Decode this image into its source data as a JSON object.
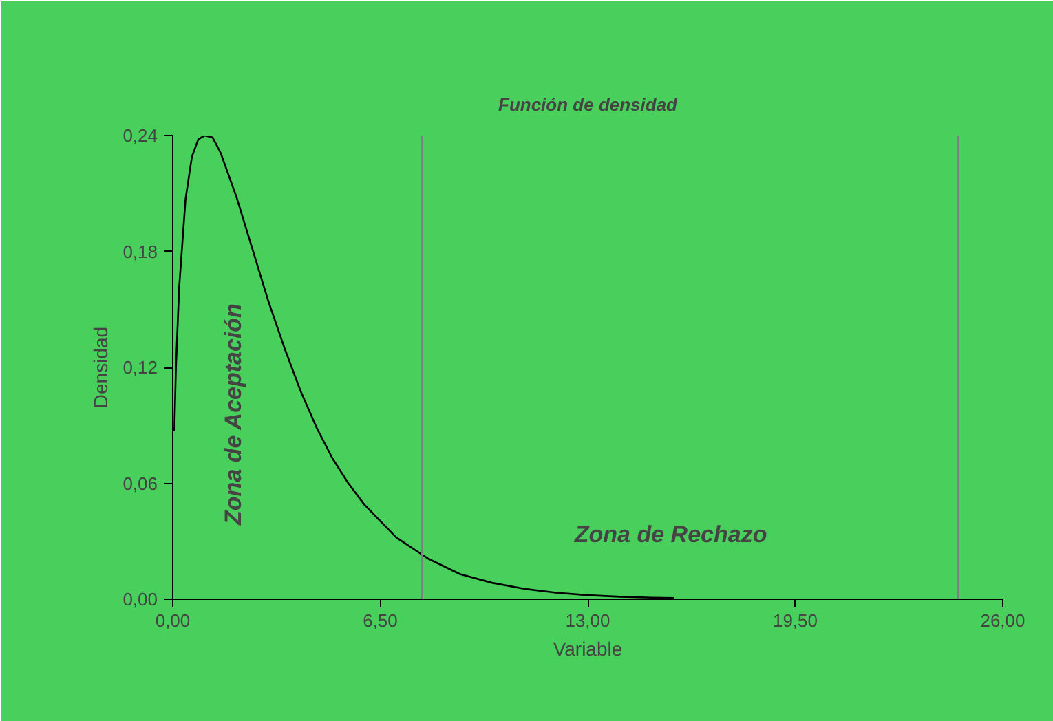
{
  "chart_data": {
    "type": "line",
    "title": "Función de densidad",
    "xlabel": "Variable",
    "ylabel": "Densidad",
    "x": [
      0.05,
      0.1,
      0.2,
      0.4,
      0.6,
      0.8,
      1,
      1.25,
      1.5,
      2,
      2.5,
      3,
      3.5,
      4,
      4.5,
      5,
      5.5,
      6,
      7,
      8,
      9,
      10,
      11,
      12,
      13,
      14,
      15,
      15.7
    ],
    "series": [
      {
        "color": "#000000",
        "values": [
          0.087,
          0.12,
          0.161,
          0.207,
          0.229,
          0.238,
          0.24,
          0.239,
          0.231,
          0.208,
          0.181,
          0.154,
          0.13,
          0.108,
          0.089,
          0.073,
          0.06,
          0.049,
          0.032,
          0.021,
          0.013,
          0.0085,
          0.0054,
          0.0034,
          0.0021,
          0.0013,
          0.0008,
          0.0006
        ]
      }
    ],
    "xlim": [
      0,
      26
    ],
    "ylim": [
      0,
      0.24
    ],
    "xticks": [
      {
        "value": 0,
        "label": "0,00"
      },
      {
        "value": 6.5,
        "label": "6,50"
      },
      {
        "value": 13,
        "label": "13,00"
      },
      {
        "value": 19.5,
        "label": "19,50"
      },
      {
        "value": 26,
        "label": "26,00"
      }
    ],
    "yticks": [
      {
        "value": 0,
        "label": "0,00"
      },
      {
        "value": 0.06,
        "label": "0,06"
      },
      {
        "value": 0.12,
        "label": "0,12"
      },
      {
        "value": 0.18,
        "label": "0,18"
      },
      {
        "value": 0.24,
        "label": "0,24"
      }
    ],
    "ref_lines": [
      {
        "axis": "x",
        "value": 7.8,
        "color": "#808080"
      },
      {
        "axis": "x",
        "value": 24.6,
        "color": "#808080"
      }
    ],
    "annotations": [
      "Zona de Aceptación",
      "Zona de Rechazo"
    ],
    "grid": false,
    "marker": "none",
    "line_style": "solid"
  }
}
